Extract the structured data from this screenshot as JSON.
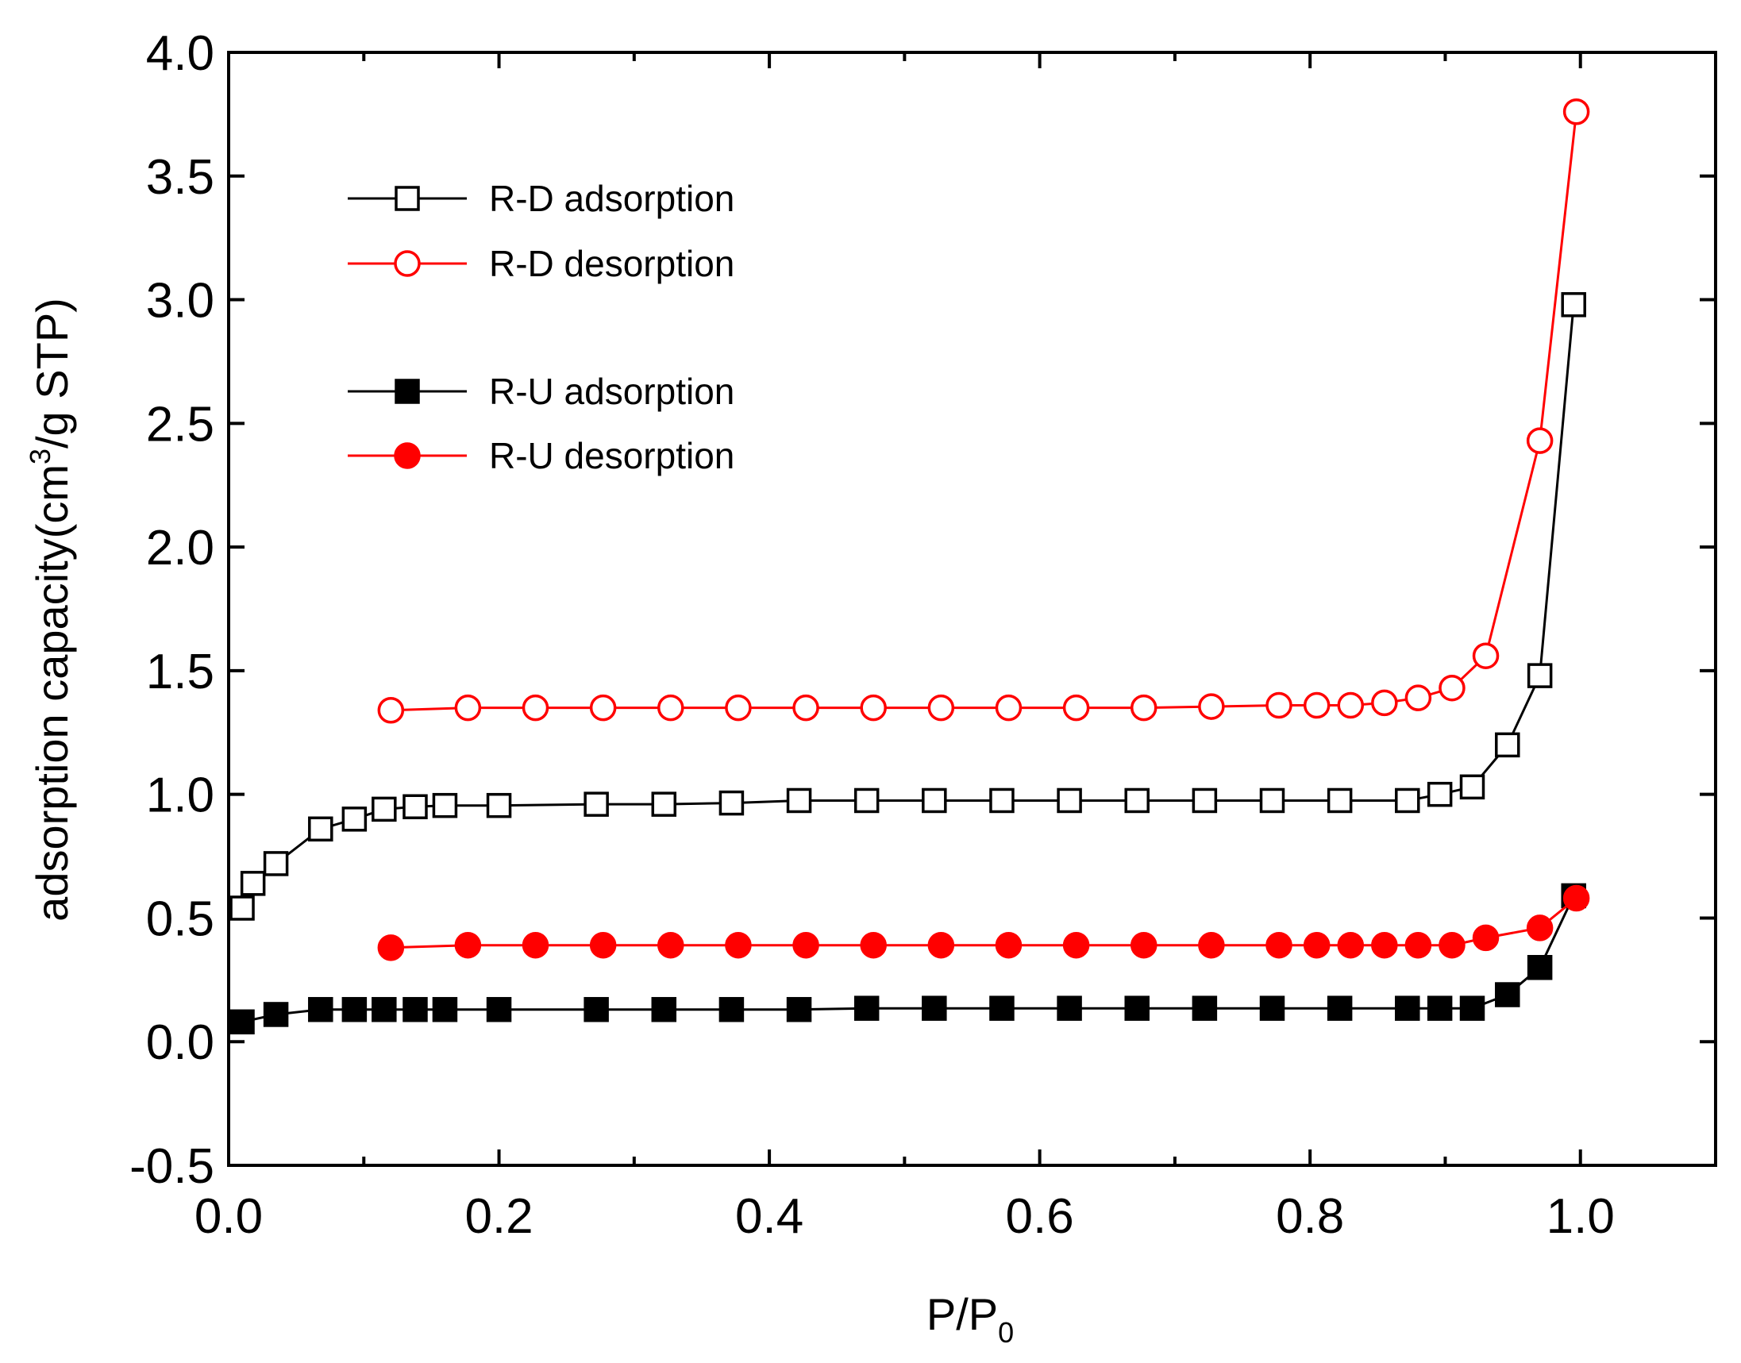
{
  "chart_data": {
    "type": "line",
    "title": "",
    "xlabel": {
      "main": "P/P",
      "sub": "0"
    },
    "ylabel": {
      "pre": "adsorption capacity(cm",
      "sup": "3",
      "post": "/g STP)"
    },
    "xlim": [
      0.0,
      1.1
    ],
    "ylim": [
      -0.5,
      4.0
    ],
    "xticks": [
      0.0,
      0.2,
      0.4,
      0.6,
      0.8,
      1.0
    ],
    "xtick_labels": [
      "0.0",
      "0.2",
      "0.4",
      "0.6",
      "0.8",
      "1.0"
    ],
    "yticks": [
      -0.5,
      0.0,
      0.5,
      1.0,
      1.5,
      2.0,
      2.5,
      3.0,
      3.5,
      4.0
    ],
    "ytick_labels": [
      "-0.5",
      "0.0",
      "0.5",
      "1.0",
      "1.5",
      "2.0",
      "2.5",
      "3.0",
      "3.5",
      "4.0"
    ],
    "grid": false,
    "legend_position": "top-left",
    "series": [
      {
        "name": "R-D adsorption",
        "color": "#000000",
        "marker": "square",
        "filled": false,
        "x": [
          0.01,
          0.018,
          0.035,
          0.068,
          0.093,
          0.115,
          0.138,
          0.16,
          0.2,
          0.272,
          0.322,
          0.372,
          0.422,
          0.472,
          0.522,
          0.572,
          0.622,
          0.672,
          0.722,
          0.772,
          0.822,
          0.872,
          0.896,
          0.92,
          0.946,
          0.97,
          0.995
        ],
        "y": [
          0.54,
          0.64,
          0.72,
          0.86,
          0.9,
          0.94,
          0.95,
          0.955,
          0.955,
          0.96,
          0.96,
          0.965,
          0.975,
          0.975,
          0.975,
          0.975,
          0.975,
          0.975,
          0.975,
          0.975,
          0.975,
          0.975,
          1.0,
          1.03,
          1.2,
          1.48,
          2.98
        ]
      },
      {
        "name": "R-D desorption",
        "color": "#ff0000",
        "marker": "circle",
        "filled": false,
        "x": [
          0.12,
          0.177,
          0.227,
          0.277,
          0.327,
          0.377,
          0.427,
          0.477,
          0.527,
          0.577,
          0.627,
          0.677,
          0.727,
          0.777,
          0.805,
          0.83,
          0.855,
          0.88,
          0.905,
          0.93,
          0.97,
          0.997
        ],
        "y": [
          1.34,
          1.35,
          1.35,
          1.35,
          1.35,
          1.35,
          1.35,
          1.35,
          1.35,
          1.35,
          1.35,
          1.35,
          1.355,
          1.36,
          1.36,
          1.36,
          1.37,
          1.39,
          1.43,
          1.56,
          2.43,
          3.76
        ]
      },
      {
        "name": "R-U adsorption",
        "color": "#000000",
        "marker": "square",
        "filled": true,
        "x": [
          0.01,
          0.035,
          0.068,
          0.093,
          0.115,
          0.138,
          0.16,
          0.2,
          0.272,
          0.322,
          0.372,
          0.422,
          0.472,
          0.522,
          0.572,
          0.622,
          0.672,
          0.722,
          0.772,
          0.822,
          0.872,
          0.896,
          0.92,
          0.946,
          0.97,
          0.995
        ],
        "y": [
          0.08,
          0.11,
          0.13,
          0.13,
          0.13,
          0.13,
          0.13,
          0.13,
          0.13,
          0.13,
          0.13,
          0.13,
          0.135,
          0.135,
          0.135,
          0.135,
          0.135,
          0.135,
          0.135,
          0.135,
          0.135,
          0.135,
          0.135,
          0.19,
          0.3,
          0.59
        ]
      },
      {
        "name": "R-U desorption",
        "color": "#ff0000",
        "marker": "circle",
        "filled": true,
        "x": [
          0.12,
          0.177,
          0.227,
          0.277,
          0.327,
          0.377,
          0.427,
          0.477,
          0.527,
          0.577,
          0.627,
          0.677,
          0.727,
          0.777,
          0.805,
          0.83,
          0.855,
          0.88,
          0.905,
          0.93,
          0.97,
          0.997
        ],
        "y": [
          0.38,
          0.39,
          0.39,
          0.39,
          0.39,
          0.39,
          0.39,
          0.39,
          0.39,
          0.39,
          0.39,
          0.39,
          0.39,
          0.39,
          0.39,
          0.39,
          0.39,
          0.39,
          0.39,
          0.42,
          0.46,
          0.58
        ]
      }
    ]
  }
}
